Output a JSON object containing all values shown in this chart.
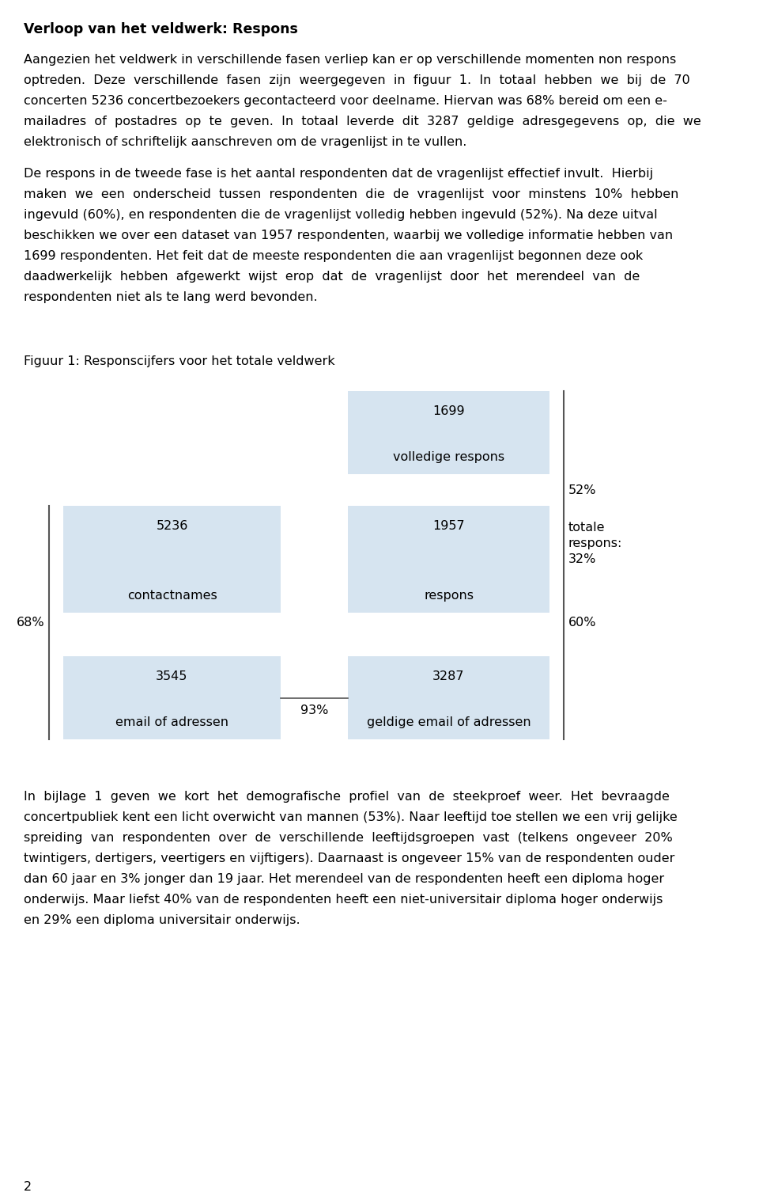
{
  "title": "Verloop van het veldwerk: Respons",
  "para1_lines": [
    "Aangezien het veldwerk in verschillende fasen verliep kan er op verschillende momenten non respons",
    "optreden.  Deze  verschillende  fasen  zijn  weergegeven  in  figuur  1.  In  totaal  hebben  we  bij  de  70",
    "concerten 5236 concertbezoekers gecontacteerd voor deelname. Hiervan was 68% bereid om een e-",
    "mailadres  of  postadres  op  te  geven.  In  totaal  leverde  dit  3287  geldige  adresgegevens  op,  die  we",
    "elektronisch of schriftelijk aanschreven om de vragenlijst in te vullen."
  ],
  "para2_lines": [
    "De respons in de tweede fase is het aantal respondenten dat de vragenlijst effectief invult.  Hierbij",
    "maken  we  een  onderscheid  tussen  respondenten  die  de  vragenlijst  voor  minstens  10%  hebben",
    "ingevuld (60%), en respondenten die de vragenlijst volledig hebben ingevuld (52%). Na deze uitval",
    "beschikken we over een dataset van 1957 respondenten, waarbij we volledige informatie hebben van",
    "1699 respondenten. Het feit dat de meeste respondenten die aan vragenlijst begonnen deze ook",
    "daadwerkelijk  hebben  afgewerkt  wijst  erop  dat  de  vragenlijst  door  het  merendeel  van  de",
    "respondenten niet als te lang werd bevonden."
  ],
  "fig_title": "Figuur 1: Responscijfers voor het totale veldwerk",
  "para3_lines": [
    "In  bijlage  1  geven  we  kort  het  demografische  profiel  van  de  steekproef  weer.  Het  bevraagde",
    "concertpubliek kent een licht overwicht van mannen (53%). Naar leeftijd toe stellen we een vrij gelijke",
    "spreiding  van  respondenten  over  de  verschillende  leeftijdsgroepen  vast  (telkens  ongeveer  20%",
    "twintigers, dertigers, veertigers en vijftigers). Daarnaast is ongeveer 15% van de respondenten ouder",
    "dan 60 jaar en 3% jonger dan 19 jaar. Het merendeel van de respondenten heeft een diploma hoger",
    "onderwijs. Maar liefst 40% van de respondenten heeft een niet-universitair diploma hoger onderwijs",
    "en 29% een diploma universitair onderwijs."
  ],
  "page_num": "2",
  "box_color": "#d6e4f0",
  "bg_color": "#ffffff",
  "text_color": "#000000",
  "fig": {
    "box1_num": "5236",
    "box1_label": "contactnames",
    "box2_num": "3545",
    "box2_label": "email of adressen",
    "box3_num": "1957",
    "box3_label": "respons",
    "box4_num": "1699",
    "box4_label": "volledige respons",
    "box5_num": "3287",
    "box5_label": "geldige email of adressen",
    "pct_68": "68%",
    "pct_60": "60%",
    "pct_52": "52%",
    "pct_93": "93%",
    "totale_line1": "totale",
    "totale_line2": "respons:",
    "totale_line3": "32%"
  }
}
